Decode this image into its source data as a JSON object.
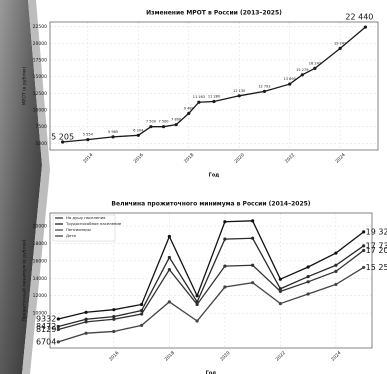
{
  "chart_data": [
    {
      "type": "line",
      "title": "Изменение МРОТ в России (2013–2025)",
      "xlabel": "Год",
      "ylabel": "МРОТ (в рублях)",
      "x": [
        2013,
        2014,
        2015,
        2016,
        2016.5,
        2017,
        2017.5,
        2018,
        2018.4,
        2019,
        2020,
        2021,
        2022,
        2022.5,
        2023,
        2024,
        2025
      ],
      "series": [
        {
          "name": "МРОТ",
          "color": "#1a1a1a",
          "values": [
            5205,
            5554,
            5965,
            6204,
            7500,
            7500,
            7800,
            9489,
            11163,
            11280,
            12130,
            12792,
            13890,
            15279,
            16242,
            19242,
            22440
          ],
          "value_labels": [
            "5 205",
            "5 554",
            "5 965",
            "6 204",
            "7 500",
            "7 500",
            "7 800",
            "9 489",
            "11 163",
            "11 280",
            "12 130",
            "12 792",
            "13 890",
            "15 279",
            "16 242",
            "19 242",
            "22 440"
          ]
        }
      ],
      "xlim": [
        2012.5,
        2025.5
      ],
      "xticks": [
        2014,
        2016,
        2018,
        2020,
        2022,
        2024
      ],
      "ylim": [
        4000,
        23200
      ],
      "yticks": [
        5000,
        7500,
        10000,
        12500,
        15000,
        17500,
        20000,
        22500
      ],
      "grid": true
    },
    {
      "type": "line",
      "title": "Величина прожиточного минимума в России (2014–2025)",
      "xlabel": "Год",
      "ylabel": "Прожиточный минимум (в рублях)",
      "x": [
        2014,
        2015,
        2016,
        2017,
        2018,
        2019,
        2020,
        2021,
        2022,
        2023,
        2024,
        2025
      ],
      "series": [
        {
          "name": "На душу населения",
          "color": "#2a2a2a",
          "values": [
            8472,
            9300,
            9600,
            10300,
            16400,
            11300,
            18500,
            18600,
            12800,
            14200,
            15500,
            17733
          ],
          "value_labels": [
            "8472",
            null,
            null,
            null,
            null,
            null,
            null,
            null,
            null,
            null,
            null,
            "17 733"
          ]
        },
        {
          "name": "Трудоспособное население",
          "color": "#111111",
          "values": [
            9332,
            10100,
            10400,
            11000,
            18800,
            12000,
            20500,
            20600,
            13900,
            15300,
            16900,
            19329
          ],
          "value_labels": [
            "9332",
            null,
            null,
            null,
            null,
            null,
            null,
            null,
            null,
            null,
            null,
            "19 329"
          ]
        },
        {
          "name": "Пенсионеры",
          "color": "#444444",
          "values": [
            6704,
            7700,
            7900,
            8600,
            11300,
            9100,
            13000,
            13500,
            11100,
            12200,
            13300,
            15250
          ],
          "value_labels": [
            "6704",
            null,
            null,
            null,
            null,
            null,
            null,
            null,
            null,
            null,
            null,
            "15 250"
          ]
        },
        {
          "name": "Дети",
          "color": "#333333",
          "values": [
            8129,
            9000,
            9300,
            9900,
            15000,
            11000,
            15400,
            15500,
            12500,
            13600,
            14800,
            17201
          ],
          "value_labels": [
            "8129",
            null,
            null,
            null,
            null,
            null,
            null,
            null,
            null,
            null,
            null,
            "17 201"
          ]
        }
      ],
      "xlim": [
        2013.7,
        2025.3
      ],
      "xticks": [
        2016,
        2018,
        2020,
        2022,
        2024
      ],
      "ylim": [
        6000,
        21500
      ],
      "yticks": [
        10000,
        12000,
        14000,
        16000,
        18000,
        20000
      ],
      "grid": true,
      "legend": "upper left"
    }
  ]
}
